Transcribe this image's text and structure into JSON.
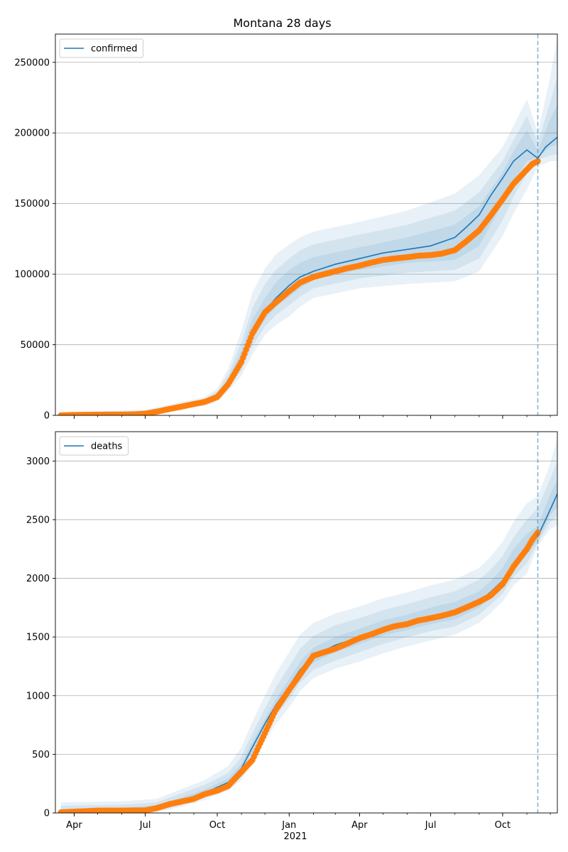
{
  "figure": {
    "title": "Montana 28 days",
    "year_label": "2021"
  },
  "colors": {
    "model_line": "#1f77b4",
    "observed": "#ff7f0e",
    "band": "#1f77b4",
    "forecast_start_line": "#1f77b4",
    "grid": "#b0b0b0"
  },
  "chart_data": [
    {
      "type": "line",
      "name": "confirmed",
      "legend": "confirmed",
      "legend_position": "top-left",
      "grid": "horizontal",
      "ylim": [
        0,
        270000
      ],
      "yticks": [
        0,
        50000,
        100000,
        150000,
        200000,
        250000
      ],
      "ytick_labels": [
        "0",
        "50000",
        "100000",
        "150000",
        "200000",
        "250000"
      ],
      "forecast_start": "2021-11-15",
      "model_line": {
        "x": [
          "2020-03-15",
          "2020-05-01",
          "2020-06-15",
          "2020-07-15",
          "2020-08-15",
          "2020-09-15",
          "2020-10-01",
          "2020-10-15",
          "2020-11-01",
          "2020-11-15",
          "2020-12-01",
          "2020-12-15",
          "2021-01-01",
          "2021-01-15",
          "2021-02-01",
          "2021-03-01",
          "2021-04-01",
          "2021-05-01",
          "2021-06-01",
          "2021-07-01",
          "2021-08-01",
          "2021-08-15",
          "2021-09-01",
          "2021-09-15",
          "2021-10-01",
          "2021-10-15",
          "2021-11-01",
          "2021-11-15",
          "2021-11-25",
          "2021-12-10"
        ],
        "y": [
          0,
          300,
          700,
          2500,
          6000,
          9500,
          13500,
          23000,
          40000,
          60000,
          74000,
          83000,
          92000,
          98000,
          102000,
          107000,
          111000,
          115000,
          117500,
          120000,
          126000,
          133000,
          142000,
          155000,
          168000,
          180000,
          188000,
          182000,
          190000,
          197000
        ]
      },
      "bands": [
        {
          "x": [
            "2020-03-15",
            "2020-07-01",
            "2020-09-15",
            "2020-10-01",
            "2020-10-15",
            "2020-11-01",
            "2020-11-15",
            "2020-12-01",
            "2020-12-15",
            "2021-01-01",
            "2021-01-15",
            "2021-02-01",
            "2021-04-01",
            "2021-06-01",
            "2021-08-01",
            "2021-09-01",
            "2021-10-01",
            "2021-10-15",
            "2021-11-01",
            "2021-11-15",
            "2021-12-01",
            "2021-12-10"
          ],
          "lower": [
            0,
            200,
            7000,
            10000,
            17000,
            28000,
            43000,
            57000,
            64000,
            70000,
            77000,
            83000,
            90000,
            93000,
            95000,
            102000,
            127000,
            143000,
            160000,
            176000,
            180000,
            180000
          ],
          "upper": [
            2000,
            4000,
            13000,
            19000,
            33000,
            60000,
            87000,
            104000,
            114000,
            121000,
            126000,
            130000,
            137000,
            145000,
            157000,
            170000,
            190000,
            205000,
            224000,
            200000,
            240000,
            268000
          ]
        },
        {
          "x": [
            "2020-03-15",
            "2020-07-01",
            "2020-09-15",
            "2020-10-01",
            "2020-10-15",
            "2020-11-01",
            "2020-11-15",
            "2020-12-01",
            "2020-12-15",
            "2021-01-01",
            "2021-01-15",
            "2021-02-01",
            "2021-04-01",
            "2021-06-01",
            "2021-08-01",
            "2021-09-01",
            "2021-10-01",
            "2021-10-15",
            "2021-11-01",
            "2021-11-15",
            "2021-12-01",
            "2021-12-10"
          ],
          "lower": [
            0,
            300,
            8000,
            11000,
            19000,
            32000,
            49000,
            63000,
            71000,
            78000,
            84000,
            90000,
            97000,
            101000,
            103000,
            111000,
            138000,
            155000,
            171000,
            181000,
            184000,
            185000
          ],
          "upper": [
            1500,
            3200,
            11500,
            17000,
            29000,
            52000,
            76000,
            93000,
            103000,
            111000,
            117000,
            121000,
            128000,
            135000,
            145000,
            158000,
            180000,
            195000,
            212000,
            193000,
            222000,
            240000
          ]
        },
        {
          "x": [
            "2020-03-15",
            "2020-07-01",
            "2020-09-15",
            "2020-10-01",
            "2020-10-15",
            "2020-11-01",
            "2020-11-15",
            "2020-12-01",
            "2020-12-15",
            "2021-01-01",
            "2021-01-15",
            "2021-02-01",
            "2021-04-01",
            "2021-06-01",
            "2021-08-01",
            "2021-09-01",
            "2021-10-01",
            "2021-10-15",
            "2021-11-01",
            "2021-11-15",
            "2021-12-01",
            "2021-12-10"
          ],
          "lower": [
            0,
            500,
            9000,
            12500,
            21000,
            36000,
            54000,
            68000,
            77000,
            84000,
            90000,
            96000,
            103000,
            108000,
            110000,
            120000,
            150000,
            166000,
            180000,
            183000,
            190000,
            192000
          ],
          "upper": [
            1000,
            2600,
            10500,
            15500,
            26000,
            46000,
            68000,
            83000,
            94000,
            103000,
            108000,
            112000,
            119000,
            126000,
            135000,
            148000,
            172000,
            187000,
            202000,
            187000,
            210000,
            220000
          ]
        }
      ],
      "observed": {
        "x": [
          "2020-03-15",
          "2020-04-01",
          "2020-05-01",
          "2020-06-01",
          "2020-06-15",
          "2020-07-01",
          "2020-07-15",
          "2020-08-01",
          "2020-08-15",
          "2020-09-01",
          "2020-09-15",
          "2020-10-01",
          "2020-10-15",
          "2020-11-01",
          "2020-11-15",
          "2020-12-01",
          "2020-12-15",
          "2021-01-01",
          "2021-01-15",
          "2021-02-01",
          "2021-02-15",
          "2021-03-01",
          "2021-03-15",
          "2021-04-01",
          "2021-04-15",
          "2021-05-01",
          "2021-05-15",
          "2021-06-01",
          "2021-06-15",
          "2021-07-01",
          "2021-07-15",
          "2021-08-01",
          "2021-08-15",
          "2021-09-01",
          "2021-09-15",
          "2021-10-01",
          "2021-10-15",
          "2021-11-01",
          "2021-11-08",
          "2021-11-15"
        ],
        "y": [
          10,
          300,
          450,
          550,
          650,
          1200,
          2500,
          4500,
          6000,
          8000,
          9500,
          13000,
          22000,
          38000,
          58000,
          73000,
          80000,
          88000,
          94000,
          98000,
          100000,
          102000,
          104000,
          106000,
          108000,
          110000,
          111000,
          112000,
          113000,
          113500,
          114500,
          117000,
          123000,
          131000,
          141000,
          153000,
          164000,
          174000,
          178000,
          180000
        ]
      }
    },
    {
      "type": "line",
      "name": "deaths",
      "legend": "deaths",
      "legend_position": "top-left",
      "grid": "horizontal",
      "ylim": [
        0,
        3250
      ],
      "yticks": [
        0,
        500,
        1000,
        1500,
        2000,
        2500,
        3000
      ],
      "ytick_labels": [
        "0",
        "500",
        "1000",
        "1500",
        "2000",
        "2500",
        "3000"
      ],
      "forecast_start": "2021-11-15",
      "xtick_labels": [
        "Apr",
        "Jul",
        "Oct",
        "Jan",
        "Apr",
        "Jul",
        "Oct"
      ],
      "xtick_dates": [
        "2020-04-01",
        "2020-07-01",
        "2020-10-01",
        "2021-01-01",
        "2021-04-01",
        "2021-07-01",
        "2021-10-01"
      ],
      "xlim": [
        "2020-03-08",
        "2021-12-10"
      ],
      "model_line": {
        "x": [
          "2020-03-15",
          "2020-06-01",
          "2020-07-15",
          "2020-08-15",
          "2020-09-15",
          "2020-10-15",
          "2020-11-01",
          "2020-11-15",
          "2020-12-01",
          "2020-12-15",
          "2021-01-01",
          "2021-01-15",
          "2021-02-01",
          "2021-03-01",
          "2021-04-01",
          "2021-05-01",
          "2021-06-01",
          "2021-07-01",
          "2021-08-01",
          "2021-09-01",
          "2021-09-15",
          "2021-10-01",
          "2021-10-15",
          "2021-11-01",
          "2021-11-15",
          "2021-11-25",
          "2021-12-10"
        ],
        "y": [
          5,
          20,
          40,
          100,
          170,
          260,
          380,
          560,
          760,
          920,
          1080,
          1220,
          1340,
          1430,
          1500,
          1570,
          1620,
          1680,
          1720,
          1800,
          1880,
          1980,
          2130,
          2260,
          2360,
          2500,
          2720
        ]
      },
      "bands": [
        {
          "x": [
            "2020-03-15",
            "2020-06-01",
            "2020-07-15",
            "2020-08-15",
            "2020-09-15",
            "2020-10-15",
            "2020-11-01",
            "2020-11-15",
            "2020-12-01",
            "2020-12-15",
            "2021-01-01",
            "2021-01-15",
            "2021-02-01",
            "2021-03-01",
            "2021-04-01",
            "2021-05-01",
            "2021-06-01",
            "2021-07-01",
            "2021-08-01",
            "2021-09-01",
            "2021-09-15",
            "2021-10-01",
            "2021-10-15",
            "2021-11-01",
            "2021-11-15",
            "2021-12-01",
            "2021-12-10"
          ],
          "lower": [
            0,
            0,
            5,
            50,
            110,
            190,
            280,
            430,
            610,
            760,
            900,
            1040,
            1150,
            1230,
            1290,
            1360,
            1420,
            1470,
            1520,
            1620,
            1700,
            1800,
            1940,
            2040,
            2280,
            2420,
            2450
          ],
          "upper": [
            90,
            100,
            120,
            200,
            280,
            400,
            560,
            780,
            1000,
            1190,
            1370,
            1520,
            1620,
            1700,
            1760,
            1830,
            1880,
            1940,
            1990,
            2090,
            2180,
            2310,
            2480,
            2640,
            2700,
            2980,
            3200
          ]
        },
        {
          "x": [
            "2020-03-15",
            "2020-06-01",
            "2020-07-15",
            "2020-08-15",
            "2020-09-15",
            "2020-10-15",
            "2020-11-01",
            "2020-11-15",
            "2020-12-01",
            "2020-12-15",
            "2021-01-01",
            "2021-01-15",
            "2021-02-01",
            "2021-03-01",
            "2021-04-01",
            "2021-05-01",
            "2021-06-01",
            "2021-07-01",
            "2021-08-01",
            "2021-09-01",
            "2021-09-15",
            "2021-10-01",
            "2021-10-15",
            "2021-11-01",
            "2021-11-15",
            "2021-12-01",
            "2021-12-10"
          ],
          "lower": [
            0,
            5,
            15,
            65,
            130,
            215,
            320,
            480,
            670,
            830,
            970,
            1110,
            1220,
            1300,
            1370,
            1440,
            1500,
            1550,
            1590,
            1690,
            1770,
            1870,
            2010,
            2130,
            2300,
            2480,
            2530
          ],
          "upper": [
            60,
            70,
            90,
            165,
            240,
            340,
            480,
            680,
            890,
            1070,
            1250,
            1400,
            1510,
            1600,
            1660,
            1730,
            1780,
            1840,
            1890,
            1990,
            2070,
            2190,
            2350,
            2500,
            2600,
            2850,
            3000
          ]
        },
        {
          "x": [
            "2020-03-15",
            "2020-06-01",
            "2020-07-15",
            "2020-08-15",
            "2020-09-15",
            "2020-10-15",
            "2020-11-01",
            "2020-11-15",
            "2020-12-01",
            "2020-12-15",
            "2021-01-01",
            "2021-01-15",
            "2021-02-01",
            "2021-03-01",
            "2021-04-01",
            "2021-05-01",
            "2021-06-01",
            "2021-07-01",
            "2021-08-01",
            "2021-09-01",
            "2021-09-15",
            "2021-10-01",
            "2021-10-15",
            "2021-11-01",
            "2021-11-15",
            "2021-12-01",
            "2021-12-10"
          ],
          "lower": [
            0,
            10,
            25,
            80,
            150,
            235,
            350,
            520,
            710,
            880,
            1030,
            1170,
            1280,
            1370,
            1440,
            1510,
            1560,
            1610,
            1650,
            1750,
            1830,
            1930,
            2070,
            2200,
            2320,
            2540,
            2610
          ],
          "upper": [
            35,
            45,
            65,
            130,
            200,
            295,
            420,
            610,
            800,
            970,
            1140,
            1290,
            1410,
            1500,
            1570,
            1640,
            1690,
            1750,
            1800,
            1890,
            1970,
            2090,
            2250,
            2380,
            2450,
            2720,
            2840
          ]
        }
      ],
      "observed": {
        "x": [
          "2020-03-15",
          "2020-04-01",
          "2020-05-01",
          "2020-06-01",
          "2020-07-01",
          "2020-07-15",
          "2020-08-01",
          "2020-08-15",
          "2020-09-01",
          "2020-09-15",
          "2020-10-01",
          "2020-10-15",
          "2020-11-01",
          "2020-11-15",
          "2020-12-01",
          "2020-12-15",
          "2021-01-01",
          "2021-01-15",
          "2021-02-01",
          "2021-02-15",
          "2021-03-01",
          "2021-03-15",
          "2021-04-01",
          "2021-04-15",
          "2021-05-01",
          "2021-05-15",
          "2021-06-01",
          "2021-06-15",
          "2021-07-01",
          "2021-07-15",
          "2021-08-01",
          "2021-08-15",
          "2021-09-01",
          "2021-09-15",
          "2021-10-01",
          "2021-10-15",
          "2021-11-01",
          "2021-11-08",
          "2021-11-15"
        ],
        "y": [
          5,
          10,
          20,
          20,
          22,
          40,
          75,
          95,
          120,
          160,
          190,
          230,
          350,
          450,
          680,
          880,
          1050,
          1180,
          1340,
          1370,
          1400,
          1440,
          1490,
          1520,
          1560,
          1590,
          1610,
          1640,
          1660,
          1680,
          1710,
          1750,
          1800,
          1850,
          1950,
          2100,
          2250,
          2330,
          2390
        ]
      }
    }
  ]
}
